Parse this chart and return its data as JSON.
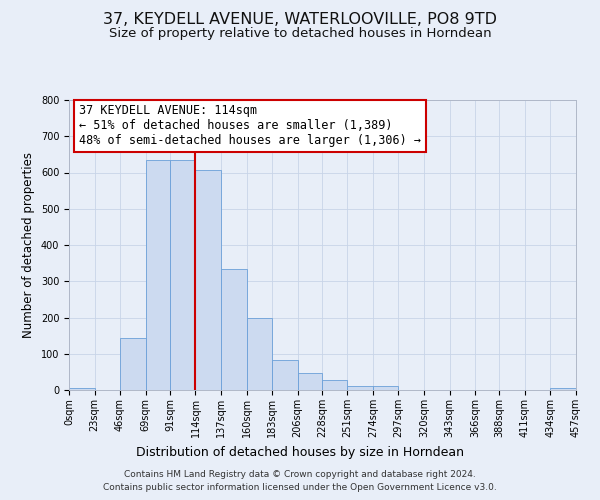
{
  "title": "37, KEYDELL AVENUE, WATERLOOVILLE, PO8 9TD",
  "subtitle": "Size of property relative to detached houses in Horndean",
  "xlabel": "Distribution of detached houses by size in Horndean",
  "ylabel": "Number of detached properties",
  "bin_edges": [
    0,
    23,
    46,
    69,
    91,
    114,
    137,
    160,
    183,
    206,
    228,
    251,
    274,
    297,
    320,
    343,
    366,
    388,
    411,
    434,
    457
  ],
  "bin_labels": [
    "0sqm",
    "23sqm",
    "46sqm",
    "69sqm",
    "91sqm",
    "114sqm",
    "137sqm",
    "160sqm",
    "183sqm",
    "206sqm",
    "228sqm",
    "251sqm",
    "274sqm",
    "297sqm",
    "320sqm",
    "343sqm",
    "366sqm",
    "388sqm",
    "411sqm",
    "434sqm",
    "457sqm"
  ],
  "counts": [
    5,
    0,
    143,
    634,
    634,
    608,
    333,
    200,
    84,
    47,
    28,
    10,
    12,
    0,
    0,
    0,
    0,
    0,
    0,
    5
  ],
  "bar_color": "#ccdaf0",
  "bar_edge_color": "#6a9fd8",
  "grid_color": "#c8d4e8",
  "bg_color": "#e8eef8",
  "vline_x": 114,
  "vline_color": "#cc0000",
  "annotation_line1": "37 KEYDELL AVENUE: 114sqm",
  "annotation_line2": "← 51% of detached houses are smaller (1,389)",
  "annotation_line3": "48% of semi-detached houses are larger (1,306) →",
  "annotation_box_color": "#ffffff",
  "annotation_box_edge": "#cc0000",
  "ylim": [
    0,
    800
  ],
  "yticks": [
    0,
    100,
    200,
    300,
    400,
    500,
    600,
    700,
    800
  ],
  "footer_line1": "Contains HM Land Registry data © Crown copyright and database right 2024.",
  "footer_line2": "Contains public sector information licensed under the Open Government Licence v3.0.",
  "title_fontsize": 11.5,
  "subtitle_fontsize": 9.5,
  "xlabel_fontsize": 9,
  "ylabel_fontsize": 8.5,
  "tick_fontsize": 7,
  "annotation_fontsize": 8.5,
  "footer_fontsize": 6.5
}
